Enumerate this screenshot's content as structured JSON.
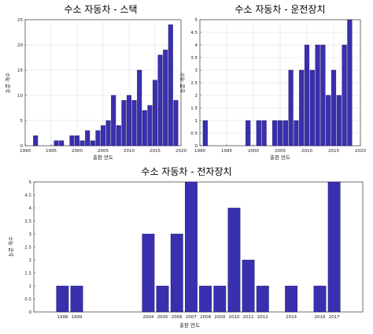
{
  "colors": {
    "bar": "#3a2fae"
  },
  "chart_data": [
    {
      "type": "bar",
      "title": "수소 자동차 - 스택",
      "xlabel": "출판 연도",
      "ylabel": "논문 개수",
      "xlim": [
        1990,
        2020
      ],
      "ylim": [
        0,
        25
      ],
      "xticks": [
        1990,
        1995,
        2000,
        2005,
        2010,
        2015,
        2020
      ],
      "yticks": [
        0,
        5,
        10,
        15,
        20,
        25
      ],
      "grid": true,
      "x": [
        1992,
        1996,
        1997,
        1999,
        2000,
        2001,
        2002,
        2003,
        2004,
        2005,
        2006,
        2007,
        2008,
        2009,
        2010,
        2011,
        2012,
        2013,
        2014,
        2015,
        2016,
        2017,
        2018,
        2019
      ],
      "values": [
        2,
        1,
        1,
        2,
        2,
        1,
        3,
        1,
        3,
        4,
        5,
        10,
        4,
        9,
        10,
        9,
        15,
        7,
        8,
        13,
        18,
        19,
        24,
        9
      ]
    },
    {
      "type": "bar",
      "title": "수소 자동차 - 운전장치",
      "xlabel": "출판 연도",
      "ylabel": "논문 개수",
      "xlim": [
        1990,
        2020
      ],
      "ylim": [
        0,
        5
      ],
      "xticks": [
        1990,
        1995,
        2000,
        2005,
        2010,
        2015,
        2020
      ],
      "yticks": [
        0,
        0.5,
        1,
        1.5,
        2,
        2.5,
        3,
        3.5,
        4,
        4.5,
        5
      ],
      "grid": true,
      "x": [
        1991,
        1999,
        2001,
        2002,
        2004,
        2005,
        2006,
        2007,
        2008,
        2009,
        2010,
        2011,
        2012,
        2013,
        2014,
        2015,
        2016,
        2017,
        2018
      ],
      "values": [
        1,
        1,
        1,
        1,
        1,
        1,
        1,
        3,
        1,
        3,
        4,
        3,
        4,
        4,
        2,
        3,
        2,
        4,
        5
      ]
    },
    {
      "type": "bar",
      "title": "수소 자동차 - 전자장치",
      "xlabel": "출판 연도",
      "ylabel": "논문 개수",
      "xlim": [
        1996,
        2019
      ],
      "ylim": [
        0,
        5
      ],
      "xticks": [
        1998,
        1999,
        2004,
        2005,
        2006,
        2007,
        2008,
        2009,
        2010,
        2011,
        2012,
        2014,
        2016,
        2017
      ],
      "yticks": [
        0,
        0.5,
        1,
        1.5,
        2,
        2.5,
        3,
        3.5,
        4,
        4.5,
        5
      ],
      "grid": false,
      "x": [
        1998,
        1999,
        2004,
        2005,
        2006,
        2007,
        2008,
        2009,
        2010,
        2011,
        2012,
        2014,
        2016,
        2017
      ],
      "values": [
        1,
        1,
        3,
        1,
        3,
        5,
        1,
        1,
        4,
        2,
        1,
        1,
        1,
        5
      ]
    }
  ]
}
